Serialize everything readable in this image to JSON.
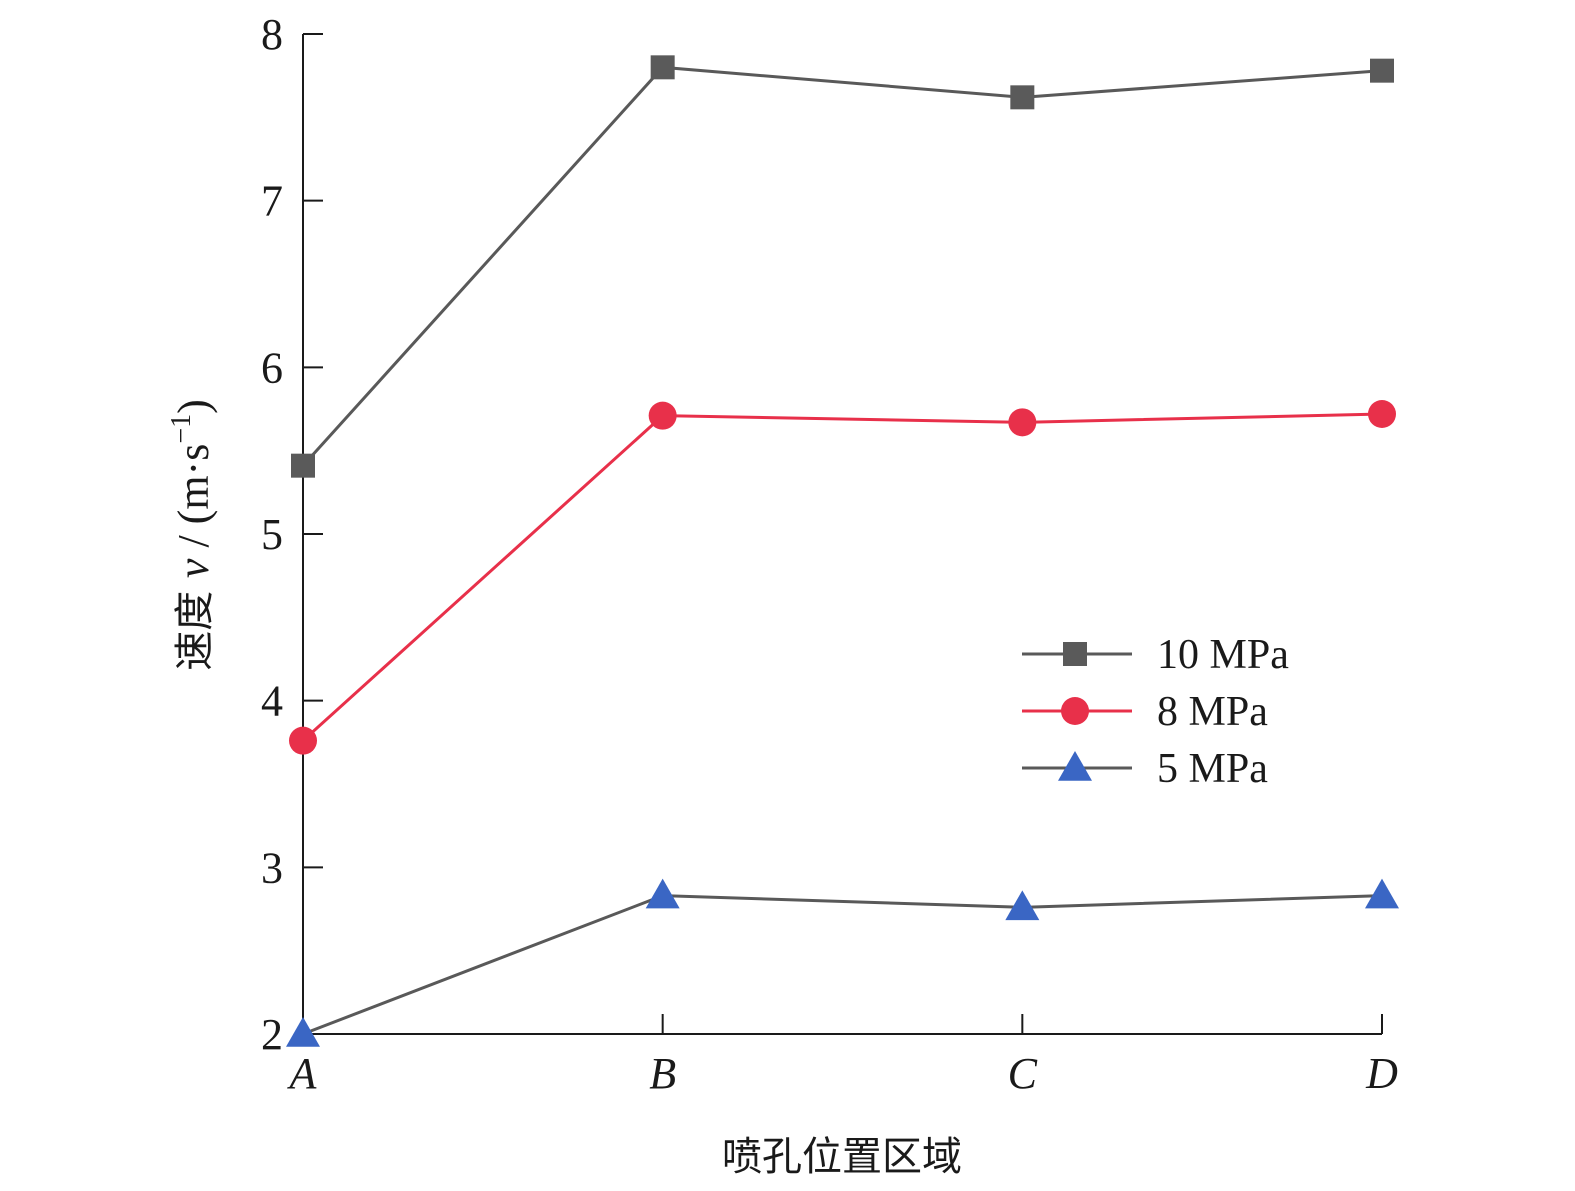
{
  "chart_data": {
    "type": "line",
    "categories": [
      "A",
      "B",
      "C",
      "D"
    ],
    "series": [
      {
        "name": "10 MPa",
        "values": [
          5.41,
          7.8,
          7.62,
          7.78
        ],
        "color": "#5a5a5a",
        "line_color": "#595959",
        "marker": "square"
      },
      {
        "name": "8 MPa",
        "values": [
          3.76,
          5.71,
          5.67,
          5.72
        ],
        "color": "#e8304a",
        "line_color": "#e8304a",
        "marker": "circle"
      },
      {
        "name": "5 MPa",
        "values": [
          2.0,
          2.83,
          2.76,
          2.83
        ],
        "color": "#3a66c4",
        "line_color": "#595959",
        "marker": "triangle"
      }
    ],
    "ylabel_prefix": "速度 ",
    "ylabel_var": "v",
    "ylabel_unit": " / (m·s",
    "ylabel_exp": "−1",
    "ylabel_close": ")",
    "xlabel": "喷孔位置区域",
    "ylim": [
      2,
      8
    ],
    "yticks": [
      2,
      3,
      4,
      5,
      6,
      7,
      8
    ],
    "grid": false,
    "legend_position": "center-right"
  }
}
